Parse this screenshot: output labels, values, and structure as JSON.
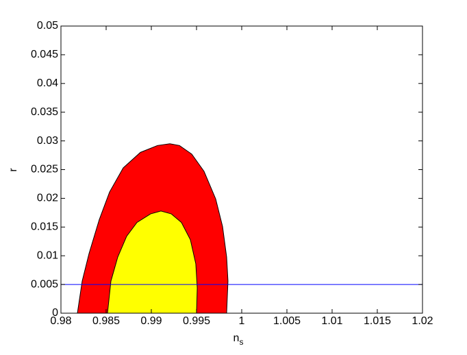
{
  "chart_data": {
    "type": "contour",
    "xlabel": "n",
    "xlabel_subscript": "s",
    "ylabel": "r",
    "xlim": [
      0.98,
      1.02
    ],
    "xticks": [
      0.98,
      0.985,
      0.99,
      0.995,
      1,
      1.005,
      1.01,
      1.015,
      1.02
    ],
    "ylim": [
      0,
      0.05
    ],
    "yticks": [
      0,
      0.005,
      0.01,
      0.015,
      0.02,
      0.025,
      0.03,
      0.035,
      0.04,
      0.045,
      0.05
    ],
    "series": [
      {
        "color": "#ff0000",
        "x": [
          0.98182,
          0.98235,
          0.98311,
          0.98424,
          0.98538,
          0.98689,
          0.98879,
          0.99068,
          0.99205,
          0.99311,
          0.99447,
          0.99583,
          0.99712,
          0.99788,
          0.99833,
          0.99848,
          0.99833
        ],
        "y": [
          0,
          0.0056,
          0.0104,
          0.0163,
          0.0211,
          0.0253,
          0.028,
          0.0292,
          0.0295,
          0.0292,
          0.0277,
          0.0247,
          0.0199,
          0.0151,
          0.0098,
          0.0056,
          0
        ]
      },
      {
        "color": "#ffff00",
        "x": [
          0.98515,
          0.98553,
          0.98629,
          0.98727,
          0.98841,
          0.98992,
          0.99106,
          0.9922,
          0.99333,
          0.99432,
          0.99492,
          0.99508,
          0.995
        ],
        "y": [
          0,
          0.0056,
          0.0098,
          0.0134,
          0.0158,
          0.0173,
          0.0178,
          0.0173,
          0.0158,
          0.0128,
          0.0086,
          0.0044,
          0
        ]
      }
    ],
    "hline": {
      "value": 0.005,
      "color": "#0000ff"
    }
  }
}
